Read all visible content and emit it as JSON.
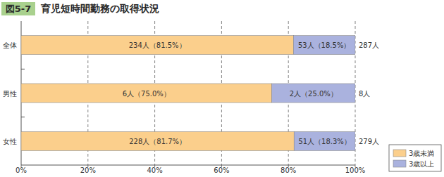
{
  "chart_data": {
    "type": "bar",
    "orientation": "horizontal",
    "stacked": true,
    "figure_number": "図5-7",
    "title": "育児短時間勤務の取得状況",
    "categories": [
      "全体",
      "男性",
      "女性"
    ],
    "series": [
      {
        "name": "3歳未満",
        "color": "#fbcf8c",
        "values": [
          81.5,
          75.0,
          81.7
        ],
        "value_labels": [
          "234人（81.5%）",
          "6人（75.0%）",
          "228人（81.7%）"
        ]
      },
      {
        "name": "3歳以上",
        "color": "#aab2de",
        "values": [
          18.5,
          25.0,
          18.3
        ],
        "value_labels": [
          "53人（18.5%）",
          "2人（25.0%）",
          "51人（18.3%）"
        ]
      }
    ],
    "total_labels": [
      "287人",
      "8人",
      "279人"
    ],
    "xlim": [
      0,
      100
    ],
    "xticks": [
      {
        "value": 0,
        "label": "0%"
      },
      {
        "value": 20,
        "label": "20%"
      },
      {
        "value": 40,
        "label": "40%"
      },
      {
        "value": 60,
        "label": "60%"
      },
      {
        "value": 80,
        "label": "80%"
      },
      {
        "value": 100,
        "label": "100%"
      }
    ],
    "grid": true,
    "data_labels": true,
    "legend": "right"
  }
}
